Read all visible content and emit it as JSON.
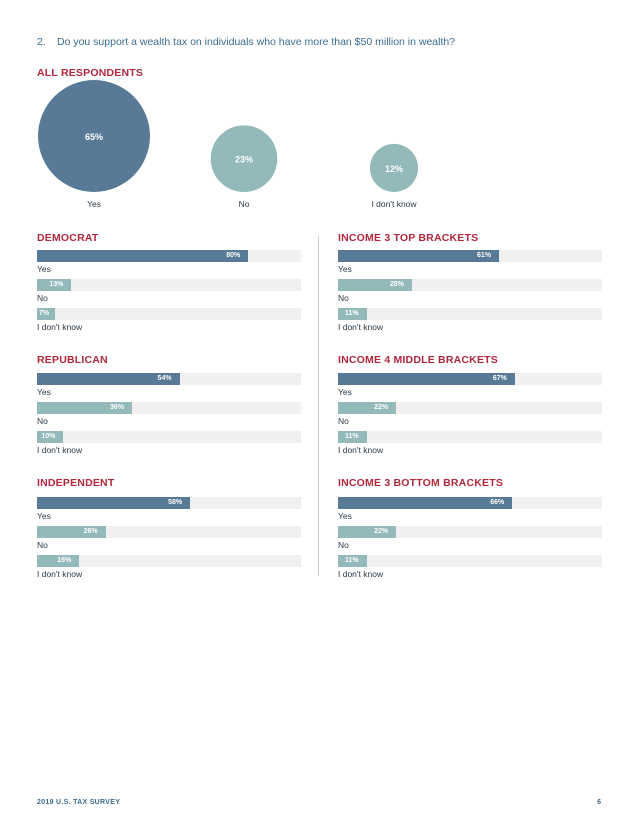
{
  "question": {
    "number": "2.",
    "text": "Do you support a wealth tax on individuals who have more than $50 million in wealth?"
  },
  "colors": {
    "yes": "#587a96",
    "no": "#94b9bb",
    "idk": "#94b9bb",
    "title": "#b0283c",
    "track": "#f0f0f0"
  },
  "chart_data": [
    {
      "type": "bubble",
      "title": "ALL RESPONDENTS",
      "categories": [
        "Yes",
        "No",
        "I don't know"
      ],
      "values": [
        65,
        23,
        12
      ],
      "value_labels": [
        "65%",
        "23%",
        "12%"
      ]
    },
    {
      "type": "bar",
      "title": "DEMOCRAT",
      "categories": [
        "Yes",
        "No",
        "I don't know"
      ],
      "values": [
        80,
        13,
        7
      ],
      "value_labels": [
        "80%",
        "13%",
        "7%"
      ],
      "xlim": [
        0,
        100
      ]
    },
    {
      "type": "bar",
      "title": "INCOME 3 TOP BRACKETS",
      "categories": [
        "Yes",
        "No",
        "I don't know"
      ],
      "values": [
        61,
        28,
        11
      ],
      "value_labels": [
        "61%",
        "28%",
        "11%"
      ],
      "xlim": [
        0,
        100
      ]
    },
    {
      "type": "bar",
      "title": "REPUBLICAN",
      "categories": [
        "Yes",
        "No",
        "I don't know"
      ],
      "values": [
        54,
        36,
        10
      ],
      "value_labels": [
        "54%",
        "36%",
        "10%"
      ],
      "xlim": [
        0,
        100
      ]
    },
    {
      "type": "bar",
      "title": "INCOME 4 MIDDLE BRACKETS",
      "categories": [
        "Yes",
        "No",
        "I don't know"
      ],
      "values": [
        67,
        22,
        11
      ],
      "value_labels": [
        "67%",
        "22%",
        "11%"
      ],
      "xlim": [
        0,
        100
      ]
    },
    {
      "type": "bar",
      "title": "INDEPENDENT",
      "categories": [
        "Yes",
        "No",
        "I don't know"
      ],
      "values": [
        58,
        26,
        16
      ],
      "value_labels": [
        "58%",
        "26%",
        "16%"
      ],
      "xlim": [
        0,
        100
      ]
    },
    {
      "type": "bar",
      "title": "INCOME 3 BOTTOM BRACKETS",
      "categories": [
        "Yes",
        "No",
        "I don't know"
      ],
      "values": [
        66,
        22,
        11
      ],
      "value_labels": [
        "66%",
        "22%",
        "11%"
      ],
      "xlim": [
        0,
        100
      ]
    }
  ],
  "footer": {
    "left": "2019 U.S. TAX SURVEY",
    "page": "6"
  }
}
